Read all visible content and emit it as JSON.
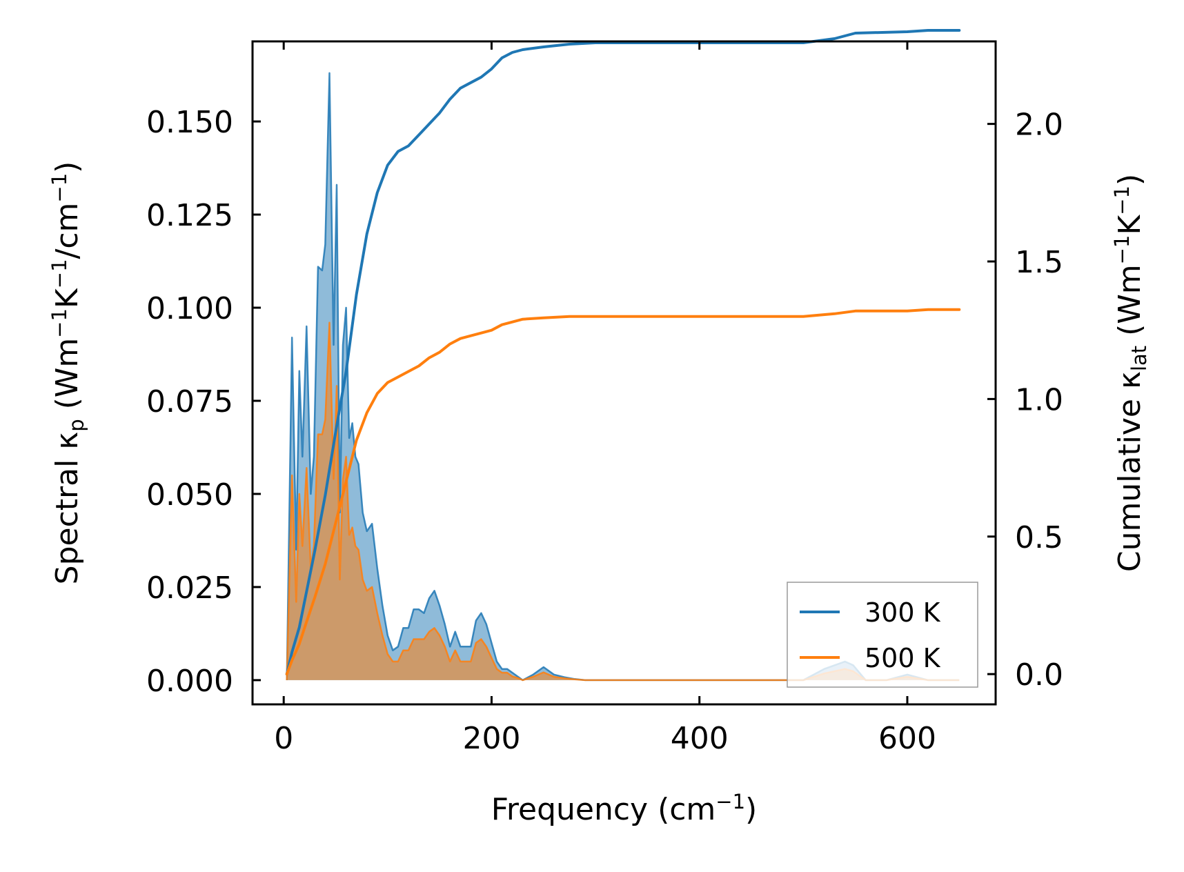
{
  "chart_data": {
    "type": "line",
    "title": "",
    "xlabel": {
      "main": "Frequency (cm",
      "sup": "−1",
      "close": ")"
    },
    "ylabel_left": {
      "p1": "Spectral κ",
      "sub": "p",
      "p2": " (Wm",
      "sup1": "−1",
      "p3": "K",
      "sup2": "−1",
      "p4": "/cm",
      "sup3": "−1",
      "p5": ")"
    },
    "ylabel_right": {
      "p1": "Cumulative κ",
      "sub": "lat",
      "p2": " (Wm",
      "sup1": "−1",
      "p3": "K",
      "sup2": "−1",
      "p4": ")"
    },
    "xlim": [
      -30,
      685
    ],
    "ylim_left": [
      -0.0065,
      0.1715
    ],
    "ylim_right": [
      -0.11,
      2.3
    ],
    "xticks": [
      0,
      200,
      400,
      600
    ],
    "yticks_left": [
      0.0,
      0.025,
      0.05,
      0.075,
      0.1,
      0.125,
      0.15
    ],
    "yticks_left_labels": [
      "0.000",
      "0.025",
      "0.050",
      "0.075",
      "0.100",
      "0.125",
      "0.150"
    ],
    "yticks_right": [
      0.0,
      0.5,
      1.0,
      1.5,
      2.0
    ],
    "yticks_right_labels": [
      "0.0",
      "0.5",
      "1.0",
      "1.5",
      "2.0"
    ],
    "legend": {
      "position": "lower-right",
      "entries": [
        "300 K",
        "500 K"
      ]
    },
    "colors": {
      "300 K": "#1f77b4",
      "500 K": "#ff7f0e"
    },
    "series": [
      {
        "name": "300 K",
        "axis": "left",
        "kind": "spectral",
        "x": [
          3,
          8,
          12,
          15,
          18,
          22,
          26,
          29,
          33,
          37,
          40,
          44,
          48,
          51,
          54,
          57,
          60,
          63,
          66,
          69,
          72,
          76,
          80,
          85,
          90,
          95,
          100,
          105,
          110,
          115,
          120,
          125,
          130,
          135,
          140,
          145,
          150,
          155,
          160,
          165,
          170,
          175,
          180,
          185,
          190,
          195,
          200,
          205,
          210,
          215,
          220,
          225,
          230,
          240,
          250,
          260,
          270,
          280,
          290,
          300,
          500,
          520,
          540,
          548,
          560,
          580,
          600,
          620,
          650
        ],
        "values": [
          0.0,
          0.092,
          0.035,
          0.083,
          0.06,
          0.095,
          0.05,
          0.06,
          0.111,
          0.11,
          0.117,
          0.163,
          0.09,
          0.133,
          0.045,
          0.09,
          0.1,
          0.065,
          0.069,
          0.06,
          0.058,
          0.045,
          0.04,
          0.042,
          0.03,
          0.02,
          0.012,
          0.008,
          0.009,
          0.014,
          0.014,
          0.019,
          0.019,
          0.018,
          0.022,
          0.024,
          0.02,
          0.015,
          0.009,
          0.013,
          0.009,
          0.009,
          0.009,
          0.016,
          0.018,
          0.015,
          0.01,
          0.005,
          0.003,
          0.003,
          0.002,
          0.001,
          0.0,
          0.0015,
          0.0035,
          0.0015,
          0.0008,
          0.0003,
          0.0,
          0.0,
          0.0,
          0.003,
          0.005,
          0.004,
          0.0,
          0.0,
          0.0015,
          0.0,
          0.0
        ]
      },
      {
        "name": "500 K",
        "axis": "left",
        "kind": "spectral",
        "x": [
          3,
          8,
          12,
          15,
          18,
          22,
          26,
          29,
          33,
          37,
          40,
          44,
          48,
          51,
          54,
          57,
          60,
          63,
          66,
          69,
          72,
          76,
          80,
          85,
          90,
          95,
          100,
          105,
          110,
          115,
          120,
          125,
          130,
          135,
          140,
          145,
          150,
          155,
          160,
          165,
          170,
          175,
          180,
          185,
          190,
          195,
          200,
          205,
          210,
          215,
          220,
          225,
          230,
          240,
          250,
          260,
          270,
          280,
          290,
          300,
          500,
          520,
          540,
          548,
          560,
          580,
          600,
          620,
          650
        ],
        "values": [
          0.0,
          0.055,
          0.021,
          0.05,
          0.036,
          0.057,
          0.03,
          0.036,
          0.066,
          0.066,
          0.07,
          0.096,
          0.054,
          0.079,
          0.027,
          0.054,
          0.06,
          0.039,
          0.041,
          0.036,
          0.035,
          0.027,
          0.024,
          0.025,
          0.018,
          0.012,
          0.007,
          0.005,
          0.005,
          0.008,
          0.008,
          0.011,
          0.011,
          0.011,
          0.013,
          0.014,
          0.012,
          0.009,
          0.005,
          0.008,
          0.005,
          0.005,
          0.005,
          0.01,
          0.011,
          0.009,
          0.006,
          0.003,
          0.002,
          0.002,
          0.001,
          0.0006,
          0.0,
          0.0009,
          0.0021,
          0.0009,
          0.0005,
          0.0002,
          0.0,
          0.0,
          0.0,
          0.0018,
          0.003,
          0.0024,
          0.0,
          0.0,
          0.0009,
          0.0,
          0.0
        ]
      },
      {
        "name": "300 K",
        "axis": "right",
        "kind": "cumulative",
        "x": [
          3,
          8,
          15,
          22,
          30,
          40,
          50,
          60,
          70,
          80,
          90,
          100,
          110,
          120,
          130,
          140,
          150,
          160,
          170,
          180,
          190,
          200,
          210,
          220,
          230,
          250,
          275,
          300,
          500,
          530,
          550,
          600,
          620,
          650
        ],
        "values": [
          0.0,
          0.08,
          0.17,
          0.3,
          0.45,
          0.65,
          0.88,
          1.1,
          1.38,
          1.6,
          1.75,
          1.85,
          1.9,
          1.92,
          1.96,
          2.0,
          2.04,
          2.09,
          2.13,
          2.15,
          2.17,
          2.2,
          2.24,
          2.26,
          2.27,
          2.28,
          2.29,
          2.295,
          2.295,
          2.31,
          2.33,
          2.335,
          2.34,
          2.34
        ]
      },
      {
        "name": "500 K",
        "axis": "right",
        "kind": "cumulative",
        "x": [
          3,
          8,
          15,
          22,
          30,
          40,
          50,
          60,
          70,
          80,
          90,
          100,
          110,
          120,
          130,
          140,
          150,
          160,
          170,
          180,
          190,
          200,
          210,
          220,
          230,
          250,
          275,
          300,
          500,
          530,
          550,
          600,
          620,
          650
        ],
        "values": [
          0.0,
          0.05,
          0.11,
          0.19,
          0.28,
          0.4,
          0.55,
          0.7,
          0.85,
          0.95,
          1.02,
          1.06,
          1.08,
          1.1,
          1.12,
          1.15,
          1.17,
          1.2,
          1.22,
          1.23,
          1.24,
          1.25,
          1.27,
          1.28,
          1.29,
          1.295,
          1.3,
          1.3,
          1.3,
          1.31,
          1.32,
          1.32,
          1.325,
          1.325
        ]
      }
    ]
  }
}
